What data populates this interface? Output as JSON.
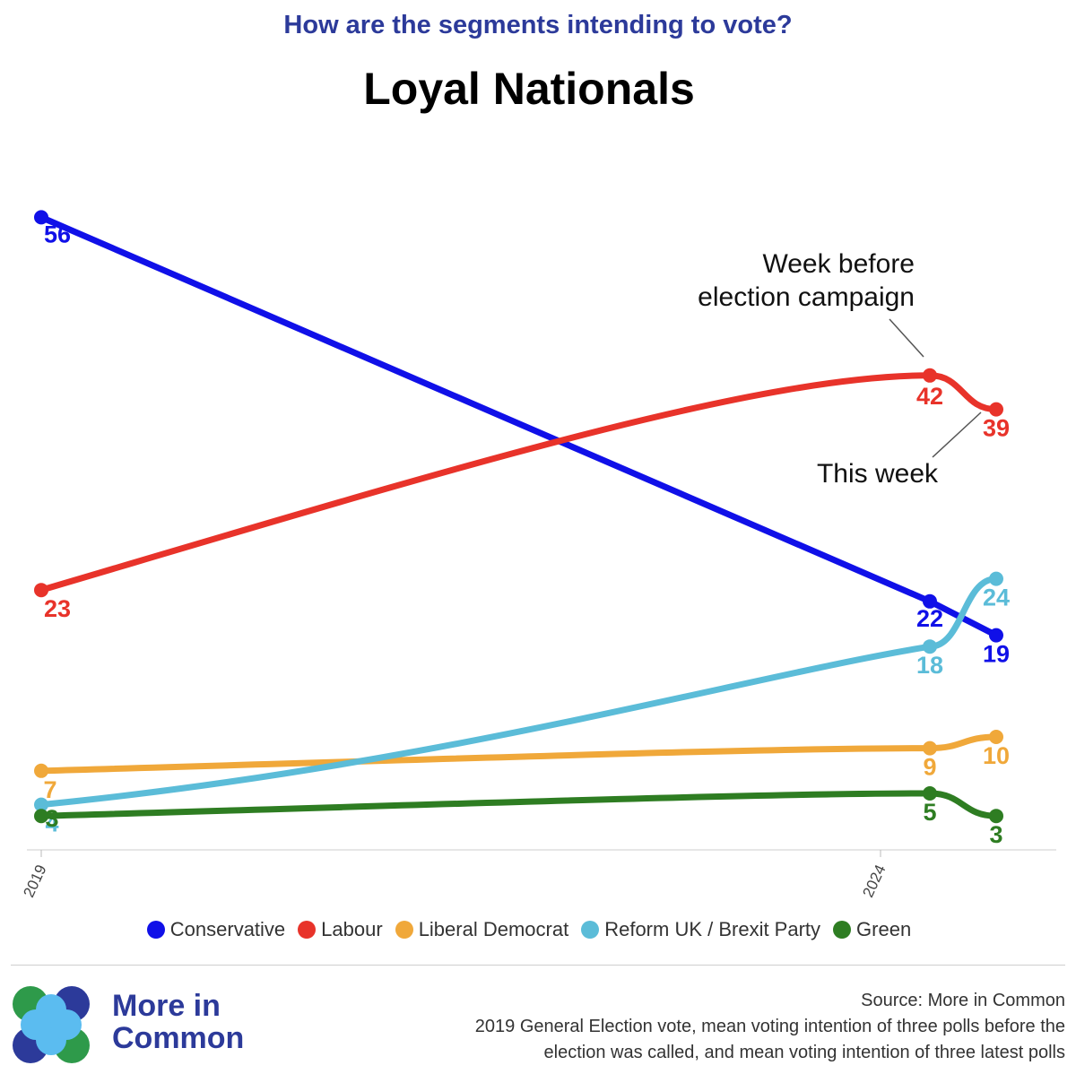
{
  "header": {
    "subtitle": "How are the segments intending to vote?",
    "title": "Loyal Nationals"
  },
  "chart_data": {
    "type": "line",
    "title": "Loyal Nationals",
    "subtitle": "How are the segments intending to vote?",
    "x_ticks": [
      "2019",
      "2024"
    ],
    "points_labels": [
      "2019 General Election",
      "Week before election campaign",
      "This week"
    ],
    "series": [
      {
        "name": "Conservative",
        "color": "#1010e8",
        "values": [
          56,
          22,
          19
        ]
      },
      {
        "name": "Labour",
        "color": "#e8332a",
        "values": [
          23,
          42,
          39
        ]
      },
      {
        "name": "Liberal Democrat",
        "color": "#f0a83a",
        "values": [
          7,
          9,
          10
        ]
      },
      {
        "name": "Reform UK / Brexit Party",
        "color": "#5bbcd8",
        "values": [
          4,
          18,
          24
        ]
      },
      {
        "name": "Green",
        "color": "#2e7d22",
        "values": [
          3,
          5,
          3
        ]
      }
    ],
    "annotations": [
      "Week before\nelection campaign",
      "This week"
    ],
    "ylim": [
      0,
      60
    ],
    "grid": false,
    "legend": "bottom"
  },
  "annotations": {
    "week_before_line1": "Week before",
    "week_before_line2": "election campaign",
    "this_week": "This week"
  },
  "legend": {
    "items": [
      {
        "label": "Conservative",
        "color": "#1010e8"
      },
      {
        "label": "Labour",
        "color": "#e8332a"
      },
      {
        "label": "Liberal Democrat",
        "color": "#f0a83a"
      },
      {
        "label": "Reform UK / Brexit Party",
        "color": "#5bbcd8"
      },
      {
        "label": "Green",
        "color": "#2e7d22"
      }
    ]
  },
  "footer": {
    "brand_line1": "More in",
    "brand_line2": "Common",
    "source_line1": "Source: More in Common",
    "source_line2": "2019 General Election vote, mean voting intention of three polls before the",
    "source_line3": "election was called, and mean voting intention of three latest polls"
  }
}
